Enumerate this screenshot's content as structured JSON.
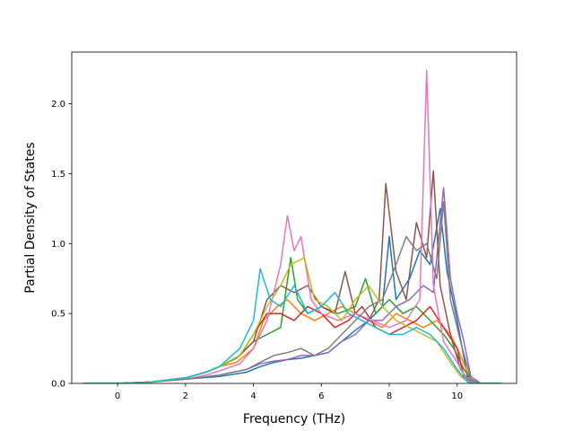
{
  "chart_data": {
    "type": "line",
    "title": "",
    "xlabel": "Frequency (THz)",
    "ylabel": "Partial Density of States",
    "xlim": [
      -1.35,
      11.75
    ],
    "ylim": [
      0.0,
      2.37
    ],
    "xticks": [
      0,
      2,
      4,
      6,
      8,
      10
    ],
    "yticks": [
      0.0,
      0.5,
      1.0,
      1.5,
      2.0
    ],
    "xtick_labels": [
      "0",
      "2",
      "4",
      "6",
      "8",
      "10"
    ],
    "ytick_labels": [
      "0.0",
      "0.5",
      "1.0",
      "1.5",
      "2.0"
    ],
    "grid": false,
    "legend": "none",
    "series": [
      {
        "color": "#1f77b4",
        "points": [
          [
            -1.0,
            0
          ],
          [
            0,
            0
          ],
          [
            1.0,
            0.01
          ],
          [
            2.0,
            0.03
          ],
          [
            3.0,
            0.05
          ],
          [
            3.8,
            0.08
          ],
          [
            4.2,
            0.12
          ],
          [
            4.6,
            0.15
          ],
          [
            5.0,
            0.17
          ],
          [
            5.4,
            0.18
          ],
          [
            5.8,
            0.2
          ],
          [
            6.2,
            0.22
          ],
          [
            6.6,
            0.3
          ],
          [
            7.0,
            0.38
          ],
          [
            7.4,
            0.45
          ],
          [
            7.8,
            0.55
          ],
          [
            8.0,
            1.05
          ],
          [
            8.2,
            0.6
          ],
          [
            8.6,
            0.75
          ],
          [
            8.9,
            0.95
          ],
          [
            9.2,
            0.85
          ],
          [
            9.5,
            1.25
          ],
          [
            9.7,
            0.8
          ],
          [
            10.0,
            0.45
          ],
          [
            10.3,
            0.05
          ],
          [
            10.6,
            0
          ],
          [
            11.3,
            0
          ]
        ]
      },
      {
        "color": "#ff7f0e",
        "points": [
          [
            -1.0,
            0
          ],
          [
            0,
            0
          ],
          [
            1.0,
            0.01
          ],
          [
            2.0,
            0.04
          ],
          [
            2.6,
            0.08
          ],
          [
            3.0,
            0.12
          ],
          [
            3.5,
            0.15
          ],
          [
            4.0,
            0.25
          ],
          [
            4.3,
            0.45
          ],
          [
            4.7,
            0.55
          ],
          [
            5.0,
            0.6
          ],
          [
            5.4,
            0.5
          ],
          [
            5.8,
            0.45
          ],
          [
            6.2,
            0.5
          ],
          [
            6.6,
            0.55
          ],
          [
            7.0,
            0.5
          ],
          [
            7.4,
            0.45
          ],
          [
            7.8,
            0.4
          ],
          [
            8.2,
            0.5
          ],
          [
            8.6,
            0.45
          ],
          [
            9.0,
            0.4
          ],
          [
            9.4,
            0.45
          ],
          [
            9.8,
            0.35
          ],
          [
            10.1,
            0.2
          ],
          [
            10.4,
            0.02
          ],
          [
            10.7,
            0
          ],
          [
            11.3,
            0
          ]
        ]
      },
      {
        "color": "#2ca02c",
        "points": [
          [
            -1.0,
            0
          ],
          [
            0,
            0
          ],
          [
            1.0,
            0.01
          ],
          [
            2.0,
            0.04
          ],
          [
            2.6,
            0.08
          ],
          [
            3.0,
            0.12
          ],
          [
            3.5,
            0.18
          ],
          [
            4.0,
            0.3
          ],
          [
            4.4,
            0.35
          ],
          [
            4.8,
            0.4
          ],
          [
            5.1,
            0.9
          ],
          [
            5.3,
            0.6
          ],
          [
            5.6,
            0.5
          ],
          [
            6.0,
            0.55
          ],
          [
            6.5,
            0.5
          ],
          [
            7.0,
            0.55
          ],
          [
            7.3,
            0.75
          ],
          [
            7.6,
            0.5
          ],
          [
            8.0,
            0.6
          ],
          [
            8.4,
            0.5
          ],
          [
            8.8,
            0.55
          ],
          [
            9.2,
            0.45
          ],
          [
            9.6,
            0.35
          ],
          [
            9.9,
            0.25
          ],
          [
            10.2,
            0.1
          ],
          [
            10.5,
            0
          ],
          [
            11.3,
            0
          ]
        ]
      },
      {
        "color": "#d62728",
        "points": [
          [
            -1.0,
            0
          ],
          [
            0,
            0
          ],
          [
            1.0,
            0.01
          ],
          [
            2.0,
            0.04
          ],
          [
            2.6,
            0.08
          ],
          [
            3.0,
            0.12
          ],
          [
            3.6,
            0.2
          ],
          [
            4.0,
            0.35
          ],
          [
            4.4,
            0.5
          ],
          [
            4.8,
            0.5
          ],
          [
            5.2,
            0.45
          ],
          [
            5.6,
            0.55
          ],
          [
            6.0,
            0.5
          ],
          [
            6.4,
            0.4
          ],
          [
            6.8,
            0.45
          ],
          [
            7.2,
            0.55
          ],
          [
            7.6,
            0.4
          ],
          [
            8.0,
            0.35
          ],
          [
            8.4,
            0.4
          ],
          [
            8.8,
            0.45
          ],
          [
            9.2,
            0.55
          ],
          [
            9.6,
            0.4
          ],
          [
            10.0,
            0.25
          ],
          [
            10.2,
            0.05
          ],
          [
            10.5,
            0
          ],
          [
            11.3,
            0
          ]
        ]
      },
      {
        "color": "#9467bd",
        "points": [
          [
            -1.0,
            0
          ],
          [
            0,
            0
          ],
          [
            1.0,
            0.01
          ],
          [
            2.0,
            0.03
          ],
          [
            3.0,
            0.06
          ],
          [
            3.8,
            0.1
          ],
          [
            4.2,
            0.14
          ],
          [
            4.6,
            0.16
          ],
          [
            5.0,
            0.17
          ],
          [
            5.4,
            0.2
          ],
          [
            5.8,
            0.2
          ],
          [
            6.2,
            0.22
          ],
          [
            6.6,
            0.3
          ],
          [
            7.0,
            0.35
          ],
          [
            7.4,
            0.45
          ],
          [
            7.8,
            0.45
          ],
          [
            8.2,
            0.55
          ],
          [
            8.6,
            0.6
          ],
          [
            9.0,
            0.7
          ],
          [
            9.3,
            0.65
          ],
          [
            9.6,
            1.4
          ],
          [
            9.8,
            0.75
          ],
          [
            10.0,
            0.5
          ],
          [
            10.2,
            0.3
          ],
          [
            10.4,
            0.05
          ],
          [
            10.7,
            0
          ],
          [
            11.3,
            0
          ]
        ]
      },
      {
        "color": "#8c564b",
        "points": [
          [
            -1.0,
            0
          ],
          [
            0,
            0
          ],
          [
            1.0,
            0.01
          ],
          [
            2.0,
            0.04
          ],
          [
            2.6,
            0.08
          ],
          [
            3.0,
            0.12
          ],
          [
            3.6,
            0.2
          ],
          [
            4.0,
            0.3
          ],
          [
            4.4,
            0.6
          ],
          [
            4.8,
            0.7
          ],
          [
            5.2,
            0.65
          ],
          [
            5.6,
            0.7
          ],
          [
            6.0,
            0.55
          ],
          [
            6.4,
            0.5
          ],
          [
            6.7,
            0.8
          ],
          [
            7.0,
            0.5
          ],
          [
            7.4,
            0.45
          ],
          [
            7.7,
            0.6
          ],
          [
            7.9,
            1.43
          ],
          [
            8.2,
            0.8
          ],
          [
            8.5,
            0.6
          ],
          [
            8.8,
            1.15
          ],
          [
            9.1,
            0.9
          ],
          [
            9.3,
            1.52
          ],
          [
            9.5,
            0.7
          ],
          [
            9.8,
            0.35
          ],
          [
            10.1,
            0.1
          ],
          [
            10.4,
            0
          ],
          [
            11.3,
            0
          ]
        ]
      },
      {
        "color": "#e377c2",
        "points": [
          [
            -1.0,
            0
          ],
          [
            0,
            0
          ],
          [
            1.0,
            0.01
          ],
          [
            2.0,
            0.03
          ],
          [
            2.6,
            0.06
          ],
          [
            3.0,
            0.09
          ],
          [
            3.6,
            0.14
          ],
          [
            4.0,
            0.25
          ],
          [
            4.4,
            0.45
          ],
          [
            4.8,
            0.85
          ],
          [
            5.0,
            1.2
          ],
          [
            5.2,
            0.95
          ],
          [
            5.4,
            1.05
          ],
          [
            5.7,
            0.6
          ],
          [
            6.0,
            0.5
          ],
          [
            6.5,
            0.45
          ],
          [
            7.0,
            0.5
          ],
          [
            7.5,
            0.45
          ],
          [
            8.0,
            0.4
          ],
          [
            8.5,
            0.45
          ],
          [
            8.9,
            0.6
          ],
          [
            9.1,
            2.24
          ],
          [
            9.3,
            0.7
          ],
          [
            9.6,
            0.3
          ],
          [
            10.0,
            0.15
          ],
          [
            10.3,
            0.02
          ],
          [
            10.6,
            0
          ],
          [
            11.3,
            0
          ]
        ]
      },
      {
        "color": "#7f7f7f",
        "points": [
          [
            -1.0,
            0
          ],
          [
            0,
            0
          ],
          [
            1.0,
            0.01
          ],
          [
            2.0,
            0.03
          ],
          [
            3.0,
            0.06
          ],
          [
            3.8,
            0.1
          ],
          [
            4.2,
            0.15
          ],
          [
            4.6,
            0.2
          ],
          [
            5.0,
            0.22
          ],
          [
            5.4,
            0.25
          ],
          [
            5.8,
            0.2
          ],
          [
            6.2,
            0.25
          ],
          [
            6.6,
            0.35
          ],
          [
            7.0,
            0.45
          ],
          [
            7.4,
            0.55
          ],
          [
            7.8,
            0.6
          ],
          [
            8.2,
            0.85
          ],
          [
            8.5,
            1.05
          ],
          [
            8.8,
            0.95
          ],
          [
            9.1,
            1.0
          ],
          [
            9.4,
            0.75
          ],
          [
            9.6,
            1.3
          ],
          [
            9.8,
            0.6
          ],
          [
            10.1,
            0.3
          ],
          [
            10.4,
            0.03
          ],
          [
            10.7,
            0
          ],
          [
            11.3,
            0
          ]
        ]
      },
      {
        "color": "#bcbd22",
        "points": [
          [
            -1.0,
            0
          ],
          [
            0,
            0
          ],
          [
            1.0,
            0.01
          ],
          [
            2.0,
            0.04
          ],
          [
            2.6,
            0.08
          ],
          [
            3.0,
            0.12
          ],
          [
            3.6,
            0.2
          ],
          [
            4.0,
            0.35
          ],
          [
            4.4,
            0.55
          ],
          [
            4.8,
            0.7
          ],
          [
            5.1,
            0.85
          ],
          [
            5.5,
            0.9
          ],
          [
            5.8,
            0.6
          ],
          [
            6.2,
            0.55
          ],
          [
            6.6,
            0.45
          ],
          [
            7.0,
            0.6
          ],
          [
            7.4,
            0.7
          ],
          [
            7.8,
            0.55
          ],
          [
            8.2,
            0.45
          ],
          [
            8.6,
            0.4
          ],
          [
            9.0,
            0.35
          ],
          [
            9.4,
            0.3
          ],
          [
            9.8,
            0.15
          ],
          [
            10.1,
            0.05
          ],
          [
            10.4,
            0
          ],
          [
            11.3,
            0
          ]
        ]
      },
      {
        "color": "#17becf",
        "points": [
          [
            -1.0,
            0
          ],
          [
            0,
            0
          ],
          [
            1.0,
            0.01
          ],
          [
            2.0,
            0.04
          ],
          [
            2.6,
            0.08
          ],
          [
            3.0,
            0.12
          ],
          [
            3.6,
            0.25
          ],
          [
            4.0,
            0.45
          ],
          [
            4.2,
            0.82
          ],
          [
            4.5,
            0.6
          ],
          [
            4.8,
            0.55
          ],
          [
            5.2,
            0.7
          ],
          [
            5.6,
            0.5
          ],
          [
            6.0,
            0.55
          ],
          [
            6.4,
            0.65
          ],
          [
            6.8,
            0.5
          ],
          [
            7.2,
            0.45
          ],
          [
            7.6,
            0.4
          ],
          [
            8.0,
            0.35
          ],
          [
            8.4,
            0.35
          ],
          [
            8.8,
            0.4
          ],
          [
            9.2,
            0.35
          ],
          [
            9.6,
            0.25
          ],
          [
            10.0,
            0.1
          ],
          [
            10.3,
            0.01
          ],
          [
            10.6,
            0
          ],
          [
            11.3,
            0
          ]
        ]
      }
    ]
  }
}
